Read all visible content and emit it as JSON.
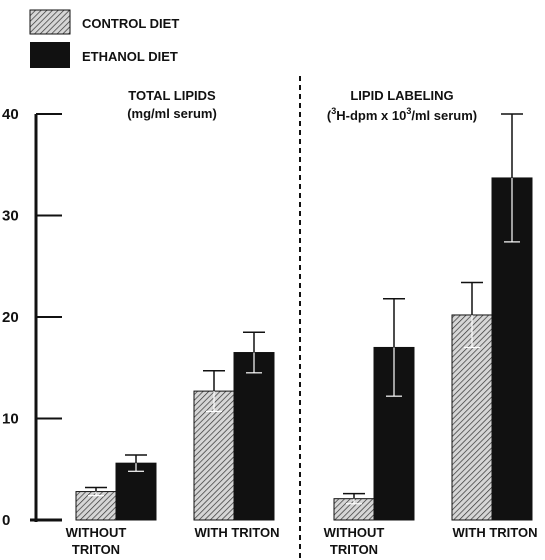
{
  "chart_data": {
    "type": "bar",
    "legend": {
      "placement": "top-left",
      "entries": [
        {
          "name": "CONTROL DIET",
          "style": "hatched"
        },
        {
          "name": "ETHANOL DIET",
          "style": "solid"
        }
      ]
    },
    "ylim": [
      0,
      40
    ],
    "yticks": [
      "0",
      "10",
      "20",
      "30",
      "40"
    ],
    "grid": false,
    "colors": {
      "ink": "#111111",
      "hatch_bg": "#d6d6d6"
    },
    "panels": [
      {
        "title_line1": "TOTAL LIPIDS",
        "title_line2": "(mg/ml serum)",
        "categories": [
          {
            "line1": "WITHOUT",
            "line2": "TRITON"
          },
          {
            "line1": "WITH TRITON",
            "line2": ""
          }
        ],
        "series": [
          {
            "name": "CONTROL DIET",
            "values": [
              2.8,
              12.7
            ],
            "error": [
              0.4,
              2.0
            ]
          },
          {
            "name": "ETHANOL DIET",
            "values": [
              5.6,
              16.5
            ],
            "error": [
              0.8,
              2.0
            ]
          }
        ]
      },
      {
        "title_line1": "LIPID LABELING",
        "title_prefix": "(",
        "title_sup1": "3",
        "title_mid": "H-dpm x 10",
        "title_sup2": "3",
        "title_suffix": "/ml serum)",
        "categories": [
          {
            "line1": "WITHOUT",
            "line2": "TRITON"
          },
          {
            "line1": "WITH TRITON",
            "line2": ""
          }
        ],
        "series": [
          {
            "name": "CONTROL DIET",
            "values": [
              2.1,
              20.2
            ],
            "error": [
              0.5,
              3.2
            ]
          },
          {
            "name": "ETHANOL DIET",
            "values": [
              17.0,
              33.7
            ],
            "error": [
              4.8,
              6.3
            ]
          }
        ]
      }
    ]
  }
}
